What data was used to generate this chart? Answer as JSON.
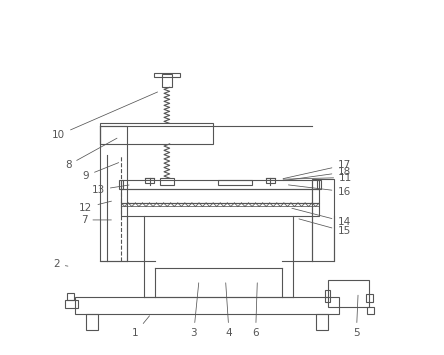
{
  "bg_color": "#ffffff",
  "line_color": "#555555",
  "label_color": "#555555",
  "lw": 0.8,
  "fig_w": 4.44,
  "fig_h": 3.55,
  "dpi": 100,
  "labels_info": [
    [
      1,
      0.3,
      0.115,
      0.255,
      0.06
    ],
    [
      2,
      0.072,
      0.248,
      0.032,
      0.255
    ],
    [
      3,
      0.435,
      0.21,
      0.42,
      0.06
    ],
    [
      4,
      0.51,
      0.21,
      0.52,
      0.06
    ],
    [
      5,
      0.885,
      0.175,
      0.88,
      0.06
    ],
    [
      6,
      0.6,
      0.21,
      0.595,
      0.06
    ],
    [
      7,
      0.195,
      0.38,
      0.11,
      0.38
    ],
    [
      8,
      0.21,
      0.615,
      0.065,
      0.535
    ],
    [
      9,
      0.215,
      0.545,
      0.115,
      0.505
    ],
    [
      10,
      0.325,
      0.745,
      0.038,
      0.62
    ],
    [
      11,
      0.665,
      0.495,
      0.85,
      0.5
    ],
    [
      12,
      0.195,
      0.435,
      0.115,
      0.415
    ],
    [
      13,
      0.245,
      0.48,
      0.15,
      0.465
    ],
    [
      14,
      0.69,
      0.415,
      0.845,
      0.375
    ],
    [
      15,
      0.71,
      0.385,
      0.845,
      0.348
    ],
    [
      16,
      0.68,
      0.48,
      0.845,
      0.46
    ],
    [
      17,
      0.665,
      0.495,
      0.845,
      0.535
    ],
    [
      18,
      0.665,
      0.49,
      0.845,
      0.515
    ]
  ]
}
